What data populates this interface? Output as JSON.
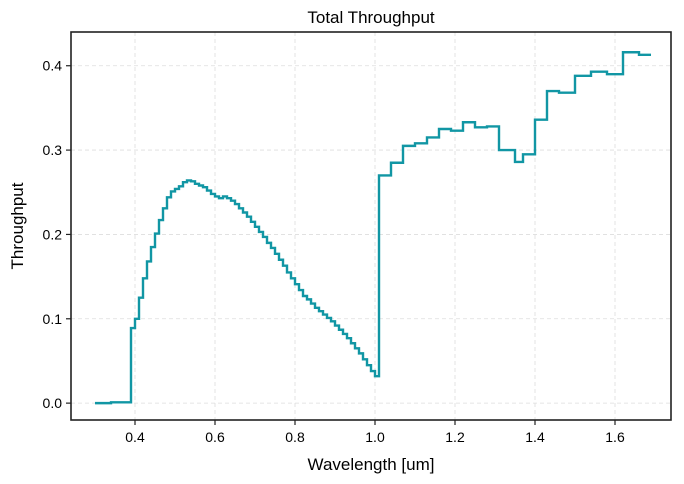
{
  "chart_data": {
    "type": "line",
    "title": "Total Throughput",
    "xlabel": "Wavelength [um]",
    "ylabel": "Throughput",
    "xlim": [
      0.24,
      1.74
    ],
    "ylim": [
      -0.02,
      0.44
    ],
    "x_ticks": [
      0.4,
      0.6,
      0.8,
      1.0,
      1.2,
      1.4,
      1.6
    ],
    "x_tick_labels": [
      "0.4",
      "0.6",
      "0.8",
      "1.0",
      "1.2",
      "1.4",
      "1.6"
    ],
    "y_ticks": [
      0.0,
      0.1,
      0.2,
      0.3,
      0.4
    ],
    "y_tick_labels": [
      "0.0",
      "0.1",
      "0.2",
      "0.3",
      "0.4"
    ],
    "grid": true,
    "step": true,
    "color": "#1196a4",
    "series": [
      {
        "x": [
          0.3,
          0.32,
          0.34,
          0.37,
          0.39,
          0.4,
          0.41,
          0.42,
          0.43,
          0.44,
          0.45,
          0.46,
          0.47,
          0.48,
          0.49,
          0.5,
          0.51,
          0.52,
          0.53,
          0.54,
          0.55,
          0.56,
          0.57,
          0.58,
          0.59,
          0.6,
          0.61,
          0.62,
          0.63,
          0.64,
          0.65,
          0.66,
          0.67,
          0.68,
          0.69,
          0.7,
          0.71,
          0.72,
          0.73,
          0.74,
          0.75,
          0.76,
          0.77,
          0.78,
          0.79,
          0.8,
          0.81,
          0.82,
          0.83,
          0.84,
          0.85,
          0.86,
          0.87,
          0.88,
          0.89,
          0.9,
          0.91,
          0.92,
          0.93,
          0.94,
          0.95,
          0.96,
          0.97,
          0.98,
          0.99,
          1.0,
          1.01,
          1.04,
          1.07,
          1.1,
          1.13,
          1.16,
          1.19,
          1.22,
          1.25,
          1.28,
          1.31,
          1.35,
          1.37,
          1.4,
          1.43,
          1.46,
          1.5,
          1.54,
          1.58,
          1.62,
          1.66,
          1.69
        ],
        "y": [
          0.0,
          0.0,
          0.001,
          0.001,
          0.089,
          0.1,
          0.125,
          0.148,
          0.168,
          0.185,
          0.201,
          0.217,
          0.231,
          0.244,
          0.251,
          0.254,
          0.257,
          0.262,
          0.264,
          0.263,
          0.26,
          0.258,
          0.256,
          0.252,
          0.248,
          0.245,
          0.243,
          0.245,
          0.243,
          0.24,
          0.236,
          0.231,
          0.226,
          0.221,
          0.215,
          0.209,
          0.203,
          0.197,
          0.19,
          0.184,
          0.177,
          0.17,
          0.163,
          0.155,
          0.148,
          0.141,
          0.134,
          0.127,
          0.123,
          0.118,
          0.113,
          0.109,
          0.105,
          0.101,
          0.097,
          0.092,
          0.087,
          0.082,
          0.077,
          0.071,
          0.065,
          0.059,
          0.052,
          0.045,
          0.038,
          0.032,
          0.27,
          0.285,
          0.305,
          0.308,
          0.315,
          0.325,
          0.323,
          0.333,
          0.327,
          0.328,
          0.3,
          0.286,
          0.295,
          0.336,
          0.37,
          0.368,
          0.388,
          0.393,
          0.39,
          0.416,
          0.413,
          0.413
        ]
      }
    ]
  }
}
